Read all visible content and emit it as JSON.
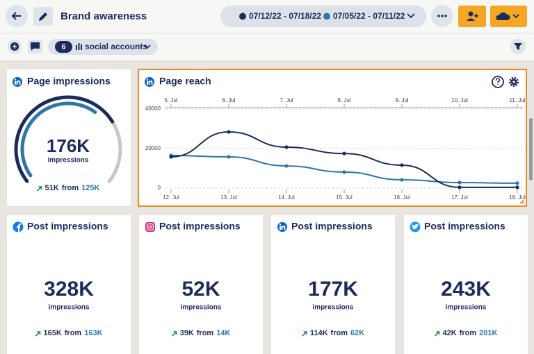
{
  "header": {
    "title": "Brand awareness"
  },
  "toolbar": {
    "account_count": "6",
    "accounts_label": "social accounts"
  },
  "summary_card": {
    "title": "Page impressions",
    "value": "176K",
    "unit": "impressions",
    "change": "51K",
    "from_word": "from",
    "previous": "125K"
  },
  "post_cards": [
    {
      "title": "Post impressions",
      "value": "328K",
      "unit": "impressions",
      "change": "165K",
      "from_word": "from",
      "previous": "163K"
    },
    {
      "title": "Post impressions",
      "value": "52K",
      "unit": "impressions",
      "change": "39K",
      "from_word": "from",
      "previous": "14K"
    },
    {
      "title": "Post impressions",
      "value": "177K",
      "unit": "impressions",
      "change": "114K",
      "from_word": "from",
      "previous": "62K"
    },
    {
      "title": "Post impressions",
      "value": "243K",
      "unit": "impressions",
      "change": "42K",
      "from_word": "from",
      "previous": "201K"
    }
  ],
  "chart_data": {
    "type": "line",
    "title": "Page reach",
    "categories": [
      "12. Jul",
      "13. Jul",
      "14. Jul",
      "15. Jul",
      "16. Jul",
      "17. Jul",
      "18. Jul"
    ],
    "x2_categories": [
      "5. Jul",
      "6. Jul",
      "7. Jul",
      "8. Jul",
      "9. Jul",
      "10. Jul",
      "11. Jul"
    ],
    "series": [
      {
        "name": "07/12/22 - 07/18/22",
        "color": "#1d2b5c",
        "values": [
          15800,
          28400,
          20700,
          17500,
          11600,
          400,
          400
        ]
      },
      {
        "name": "07/05/22 - 07/11/22",
        "color": "#2a77a8",
        "values": [
          16500,
          15800,
          11200,
          8100,
          4200,
          2800,
          2500
        ]
      }
    ],
    "ylim": [
      0,
      40000
    ],
    "yticks": [
      0,
      20000,
      40000
    ],
    "grid": true
  }
}
